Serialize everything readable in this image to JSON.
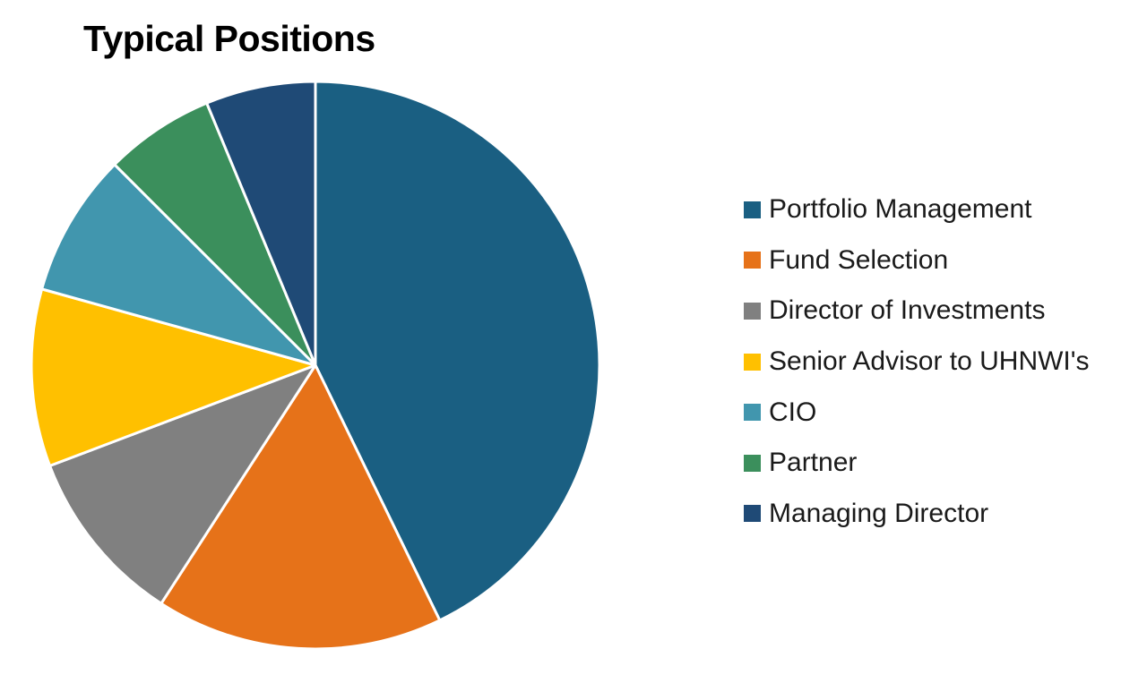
{
  "chart_data": {
    "type": "pie",
    "title": "Typical Positions",
    "legend_position": "right",
    "slices": [
      {
        "label": "Portfolio Management",
        "value": 44.5,
        "color": "#1a5f82"
      },
      {
        "label": "Fund Selection",
        "value": 17.0,
        "color": "#e67219"
      },
      {
        "label": "Director of Investments",
        "value": 10.5,
        "color": "#808080"
      },
      {
        "label": "Senior Advisor to UHNWI's",
        "value": 10.5,
        "color": "#ffc000"
      },
      {
        "label": "CIO",
        "value": 8.5,
        "color": "#4196ae"
      },
      {
        "label": "Partner",
        "value": 6.5,
        "color": "#3b8f5c"
      },
      {
        "label": "Managing Director",
        "value": 6.5,
        "color": "#1f4a76"
      }
    ]
  }
}
